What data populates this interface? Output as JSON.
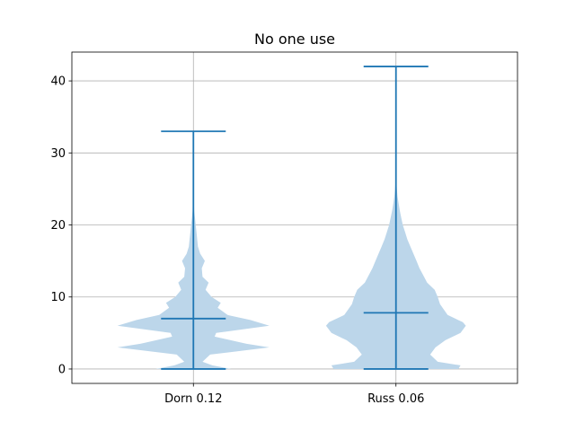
{
  "chart_data": {
    "type": "violin",
    "title": "No one use",
    "xlabel": "",
    "ylabel": "",
    "categories": [
      "Dorn 0.12",
      "Russ 0.06"
    ],
    "ylim": [
      -2,
      44
    ],
    "yticks": [
      0,
      10,
      20,
      30,
      40
    ],
    "grid": true,
    "colors": {
      "body": "#bcd6ea",
      "lines": "#1f77b4",
      "grid": "#b0b0b0",
      "axes": "#000000"
    },
    "series": [
      {
        "category": "Dorn 0.12",
        "min": 0,
        "max": 33,
        "median": 7,
        "density": [
          [
            0,
            0.5
          ],
          [
            0.5,
            0.25
          ],
          [
            1,
            0.12
          ],
          [
            2,
            0.22
          ],
          [
            3,
            1.0
          ],
          [
            3.5,
            0.7
          ],
          [
            4.5,
            0.28
          ],
          [
            5,
            0.3
          ],
          [
            6,
            1.0
          ],
          [
            6.8,
            0.75
          ],
          [
            7.5,
            0.45
          ],
          [
            8.5,
            0.32
          ],
          [
            9.2,
            0.36
          ],
          [
            10,
            0.24
          ],
          [
            11,
            0.16
          ],
          [
            12,
            0.2
          ],
          [
            12.8,
            0.12
          ],
          [
            14,
            0.11
          ],
          [
            15,
            0.15
          ],
          [
            16,
            0.09
          ],
          [
            17,
            0.06
          ],
          [
            18,
            0.05
          ],
          [
            19,
            0.04
          ],
          [
            20,
            0.03
          ],
          [
            21,
            0.02
          ],
          [
            22,
            0.01
          ],
          [
            24,
            0.005
          ],
          [
            27,
            0.003
          ],
          [
            30,
            0.002
          ],
          [
            33,
            0.001
          ]
        ]
      },
      {
        "category": "Russ 0.06",
        "min": 0,
        "max": 42,
        "median": 7.8,
        "density": [
          [
            0,
            0.82
          ],
          [
            0.5,
            0.85
          ],
          [
            1,
            0.55
          ],
          [
            2,
            0.45
          ],
          [
            3,
            0.52
          ],
          [
            4,
            0.65
          ],
          [
            5,
            0.85
          ],
          [
            6,
            0.92
          ],
          [
            6.5,
            0.88
          ],
          [
            7.5,
            0.68
          ],
          [
            9,
            0.58
          ],
          [
            10,
            0.55
          ],
          [
            11,
            0.51
          ],
          [
            12,
            0.41
          ],
          [
            13,
            0.36
          ],
          [
            14,
            0.31
          ],
          [
            15,
            0.27
          ],
          [
            16,
            0.23
          ],
          [
            17,
            0.19
          ],
          [
            18,
            0.15
          ],
          [
            19,
            0.12
          ],
          [
            20,
            0.09
          ],
          [
            21,
            0.07
          ],
          [
            22,
            0.05
          ],
          [
            23,
            0.035
          ],
          [
            24,
            0.02
          ],
          [
            25,
            0.012
          ],
          [
            26,
            0.006
          ],
          [
            27,
            0.003
          ],
          [
            30,
            0.002
          ],
          [
            35,
            0.001
          ],
          [
            42,
            0.001
          ]
        ]
      }
    ]
  }
}
